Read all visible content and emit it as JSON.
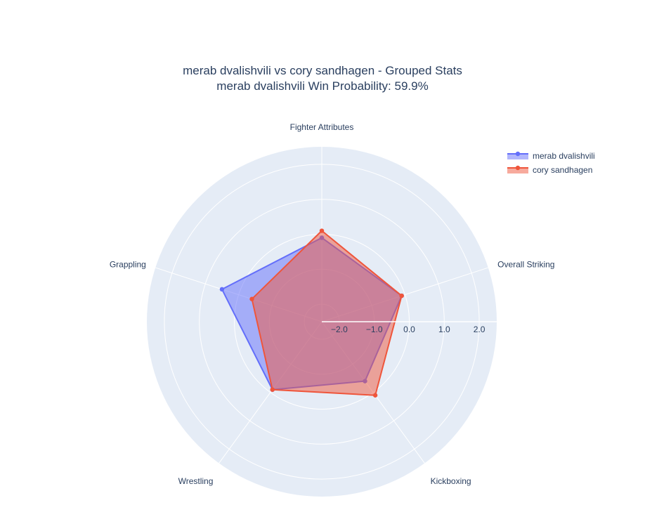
{
  "chart_data": {
    "type": "radar",
    "title": "merab dvalishvili vs cory sandhagen - Grouped Stats",
    "subtitle": "merab dvalishvili Win Probability: 59.9%",
    "categories": [
      "Fighter Attributes",
      "Overall Striking",
      "Kickboxing",
      "Wrestling",
      "Grappling"
    ],
    "radial_range": [
      -2.5,
      2.5
    ],
    "radial_ticks": [
      -2.0,
      -1.0,
      0.0,
      1.0,
      2.0
    ],
    "radial_tick_labels": [
      "−2.0",
      "−1.0",
      "0.0",
      "1.0",
      "2.0"
    ],
    "grid": true,
    "legend_position": "top-right",
    "series": [
      {
        "name": "merab dvalishvili",
        "color": "#636efa",
        "values": [
          -0.1,
          -0.1,
          -0.4,
          -0.1,
          0.5
        ]
      },
      {
        "name": "cory sandhagen",
        "color": "#ef553b",
        "values": [
          0.1,
          -0.1,
          0.1,
          -0.1,
          -0.4
        ]
      }
    ]
  }
}
